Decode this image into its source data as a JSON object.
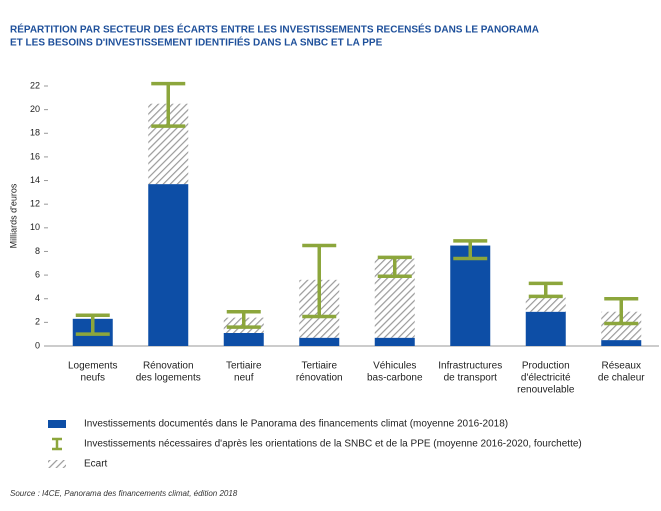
{
  "chart_data": {
    "type": "bar",
    "title": [
      "RÉPARTITION PAR SECTEUR DES ÉCARTS ENTRE LES INVESTISSEMENTS RECENSÉS DANS LE PANORAMA",
      "ET LES BESOINS D'INVESTISSEMENT IDENTIFIÉS DANS LA SNBC ET LA PPE"
    ],
    "y_label": "Milliards d'euros",
    "categories": [
      [
        "Logements",
        "neufs"
      ],
      [
        "Rénovation",
        "des logements"
      ],
      [
        "Tertiaire",
        "neuf"
      ],
      [
        "Tertiaire",
        "rénovation"
      ],
      [
        "Véhicules",
        "bas-carbone"
      ],
      [
        "Infrastructures",
        "de transport"
      ],
      [
        "Production",
        "d'électricité",
        "renouvelable"
      ],
      [
        "Réseaux",
        "de chaleur"
      ]
    ],
    "series": [
      {
        "name": "Investissements documentés dans le Panorama des financements climat (moyenne 2016-2018)",
        "color": "#0d4ea6",
        "values": [
          2.3,
          13.7,
          1.1,
          0.7,
          0.7,
          8.5,
          2.9,
          0.5
        ]
      },
      {
        "name": "Investissements nécessaires d'après les orientations de la SNBC et de la PPE (moyenne 2016-2020, fourchette)",
        "color": "#8ca63c",
        "low": [
          1.0,
          18.6,
          1.6,
          2.5,
          5.9,
          7.4,
          4.2,
          1.9
        ],
        "high": [
          2.6,
          22.2,
          2.9,
          8.5,
          7.5,
          8.9,
          5.3,
          4.0
        ]
      },
      {
        "name": "Ecart",
        "color": "#9a9a9a",
        "values": [
          null,
          6.8,
          1.3,
          4.9,
          6.7,
          null,
          1.2,
          2.4
        ]
      }
    ],
    "ylim": [
      0,
      22
    ],
    "yticks": [
      0,
      2,
      4,
      6,
      8,
      10,
      12,
      14,
      16,
      18,
      20,
      22
    ],
    "source": "Source : I4CE, Panorama des financements climat, édition 2018"
  }
}
